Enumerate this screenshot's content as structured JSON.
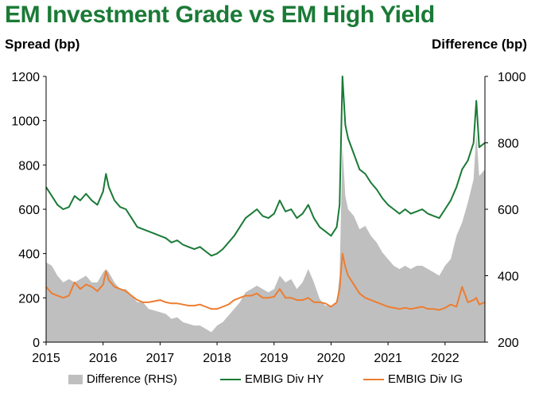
{
  "title": "EM Investment Grade vs EM High Yield",
  "left_axis_title": "Spread (bp)",
  "right_axis_title": "Difference (bp)",
  "colors": {
    "title": "#1a7a36",
    "hy": "#1a7a36",
    "ig": "#ed7d31",
    "difference": "#bfbfbf"
  },
  "legend": [
    {
      "label": "Difference (RHS)",
      "color": "#bfbfbf",
      "kind": "area"
    },
    {
      "label": "EMBIG Div HY",
      "color": "#1a7a36",
      "kind": "line"
    },
    {
      "label": "EMBIG Div IG",
      "color": "#ed7d31",
      "kind": "line"
    }
  ],
  "chart_data": {
    "type": "line",
    "title": "EM Investment Grade vs EM High Yield",
    "ylabel": "Spread (bp)",
    "y2label": "Difference (bp)",
    "xlim": [
      2015.0,
      2022.7
    ],
    "ylim": [
      0,
      1200
    ],
    "y2lim": [
      200,
      1000
    ],
    "x_ticks": [
      2015,
      2016,
      2017,
      2018,
      2019,
      2020,
      2021,
      2022
    ],
    "y_ticks": [
      0,
      200,
      400,
      600,
      800,
      1000,
      1200
    ],
    "y2_ticks": [
      200,
      400,
      600,
      800,
      1000
    ],
    "grid": false,
    "legend_position": "bottom",
    "series": [
      {
        "name": "EMBIG Div HY",
        "axis": "left",
        "type": "line",
        "x": [
          2015.0,
          2015.1,
          2015.2,
          2015.3,
          2015.4,
          2015.5,
          2015.6,
          2015.7,
          2015.8,
          2015.9,
          2016.0,
          2016.05,
          2016.1,
          2016.2,
          2016.3,
          2016.4,
          2016.5,
          2016.6,
          2016.7,
          2016.8,
          2016.9,
          2017.0,
          2017.1,
          2017.2,
          2017.3,
          2017.4,
          2017.5,
          2017.6,
          2017.7,
          2017.8,
          2017.9,
          2018.0,
          2018.1,
          2018.2,
          2018.3,
          2018.4,
          2018.5,
          2018.6,
          2018.7,
          2018.8,
          2018.9,
          2019.0,
          2019.1,
          2019.2,
          2019.3,
          2019.4,
          2019.5,
          2019.6,
          2019.7,
          2019.8,
          2019.9,
          2020.0,
          2020.1,
          2020.15,
          2020.2,
          2020.25,
          2020.3,
          2020.4,
          2020.5,
          2020.6,
          2020.7,
          2020.8,
          2020.9,
          2021.0,
          2021.1,
          2021.2,
          2021.3,
          2021.4,
          2021.5,
          2021.6,
          2021.7,
          2021.8,
          2021.9,
          2022.0,
          2022.1,
          2022.2,
          2022.3,
          2022.4,
          2022.5,
          2022.55,
          2022.6,
          2022.7
        ],
        "values": [
          700,
          660,
          620,
          600,
          610,
          660,
          640,
          670,
          640,
          620,
          680,
          760,
          700,
          640,
          610,
          600,
          560,
          520,
          510,
          500,
          490,
          480,
          470,
          450,
          460,
          440,
          430,
          420,
          430,
          410,
          390,
          400,
          420,
          450,
          480,
          520,
          560,
          580,
          600,
          570,
          560,
          580,
          640,
          590,
          600,
          560,
          580,
          620,
          560,
          520,
          500,
          480,
          520,
          620,
          1200,
          980,
          920,
          850,
          780,
          760,
          720,
          690,
          650,
          620,
          600,
          580,
          600,
          580,
          590,
          600,
          580,
          570,
          560,
          600,
          640,
          700,
          780,
          820,
          900,
          1090,
          880,
          900
        ]
      },
      {
        "name": "EMBIG Div IG",
        "axis": "left",
        "type": "line",
        "x": [
          2015.0,
          2015.1,
          2015.2,
          2015.3,
          2015.4,
          2015.5,
          2015.6,
          2015.7,
          2015.8,
          2015.9,
          2016.0,
          2016.05,
          2016.1,
          2016.2,
          2016.3,
          2016.4,
          2016.5,
          2016.6,
          2016.7,
          2016.8,
          2016.9,
          2017.0,
          2017.1,
          2017.2,
          2017.3,
          2017.4,
          2017.5,
          2017.6,
          2017.7,
          2017.8,
          2017.9,
          2018.0,
          2018.1,
          2018.2,
          2018.3,
          2018.4,
          2018.5,
          2018.6,
          2018.7,
          2018.8,
          2018.9,
          2019.0,
          2019.1,
          2019.2,
          2019.3,
          2019.4,
          2019.5,
          2019.6,
          2019.7,
          2019.8,
          2019.9,
          2020.0,
          2020.1,
          2020.15,
          2020.2,
          2020.25,
          2020.3,
          2020.4,
          2020.5,
          2020.6,
          2020.7,
          2020.8,
          2020.9,
          2021.0,
          2021.1,
          2021.2,
          2021.3,
          2021.4,
          2021.5,
          2021.6,
          2021.7,
          2021.8,
          2021.9,
          2022.0,
          2022.1,
          2022.2,
          2022.3,
          2022.4,
          2022.5,
          2022.55,
          2022.6,
          2022.7
        ],
        "values": [
          250,
          220,
          210,
          200,
          210,
          270,
          240,
          260,
          250,
          230,
          260,
          320,
          280,
          250,
          240,
          230,
          210,
          190,
          180,
          180,
          185,
          190,
          180,
          175,
          175,
          170,
          165,
          165,
          170,
          160,
          150,
          150,
          160,
          170,
          190,
          200,
          210,
          210,
          220,
          200,
          200,
          205,
          240,
          200,
          200,
          190,
          190,
          200,
          180,
          180,
          175,
          160,
          180,
          240,
          400,
          340,
          300,
          260,
          220,
          200,
          190,
          180,
          170,
          160,
          155,
          150,
          155,
          150,
          155,
          160,
          150,
          150,
          145,
          155,
          170,
          160,
          250,
          180,
          190,
          200,
          170,
          180
        ]
      },
      {
        "name": "Difference (RHS)",
        "axis": "right",
        "type": "area",
        "x": [
          2015.0,
          2015.1,
          2015.2,
          2015.3,
          2015.4,
          2015.5,
          2015.6,
          2015.7,
          2015.8,
          2015.9,
          2016.0,
          2016.05,
          2016.1,
          2016.2,
          2016.3,
          2016.4,
          2016.5,
          2016.6,
          2016.7,
          2016.8,
          2016.9,
          2017.0,
          2017.1,
          2017.2,
          2017.3,
          2017.4,
          2017.5,
          2017.6,
          2017.7,
          2017.8,
          2017.9,
          2018.0,
          2018.1,
          2018.2,
          2018.3,
          2018.4,
          2018.5,
          2018.6,
          2018.7,
          2018.8,
          2018.9,
          2019.0,
          2019.1,
          2019.2,
          2019.3,
          2019.4,
          2019.5,
          2019.6,
          2019.7,
          2019.8,
          2019.9,
          2020.0,
          2020.1,
          2020.15,
          2020.2,
          2020.25,
          2020.3,
          2020.4,
          2020.5,
          2020.6,
          2020.7,
          2020.8,
          2020.9,
          2021.0,
          2021.1,
          2021.2,
          2021.3,
          2021.4,
          2021.5,
          2021.6,
          2021.7,
          2021.8,
          2021.9,
          2022.0,
          2022.1,
          2022.2,
          2022.3,
          2022.4,
          2022.5,
          2022.55,
          2022.6,
          2022.7
        ],
        "values": [
          440,
          430,
          400,
          380,
          390,
          380,
          390,
          400,
          380,
          380,
          410,
          420,
          410,
          380,
          360,
          360,
          340,
          320,
          320,
          300,
          295,
          290,
          285,
          270,
          275,
          260,
          255,
          250,
          250,
          240,
          230,
          250,
          260,
          280,
          300,
          320,
          350,
          360,
          370,
          360,
          350,
          360,
          400,
          380,
          390,
          360,
          380,
          420,
          380,
          330,
          310,
          310,
          320,
          400,
          790,
          640,
          600,
          580,
          540,
          550,
          520,
          500,
          470,
          450,
          430,
          420,
          430,
          420,
          430,
          430,
          420,
          410,
          400,
          430,
          450,
          520,
          560,
          620,
          690,
          830,
          700,
          720
        ]
      }
    ]
  }
}
